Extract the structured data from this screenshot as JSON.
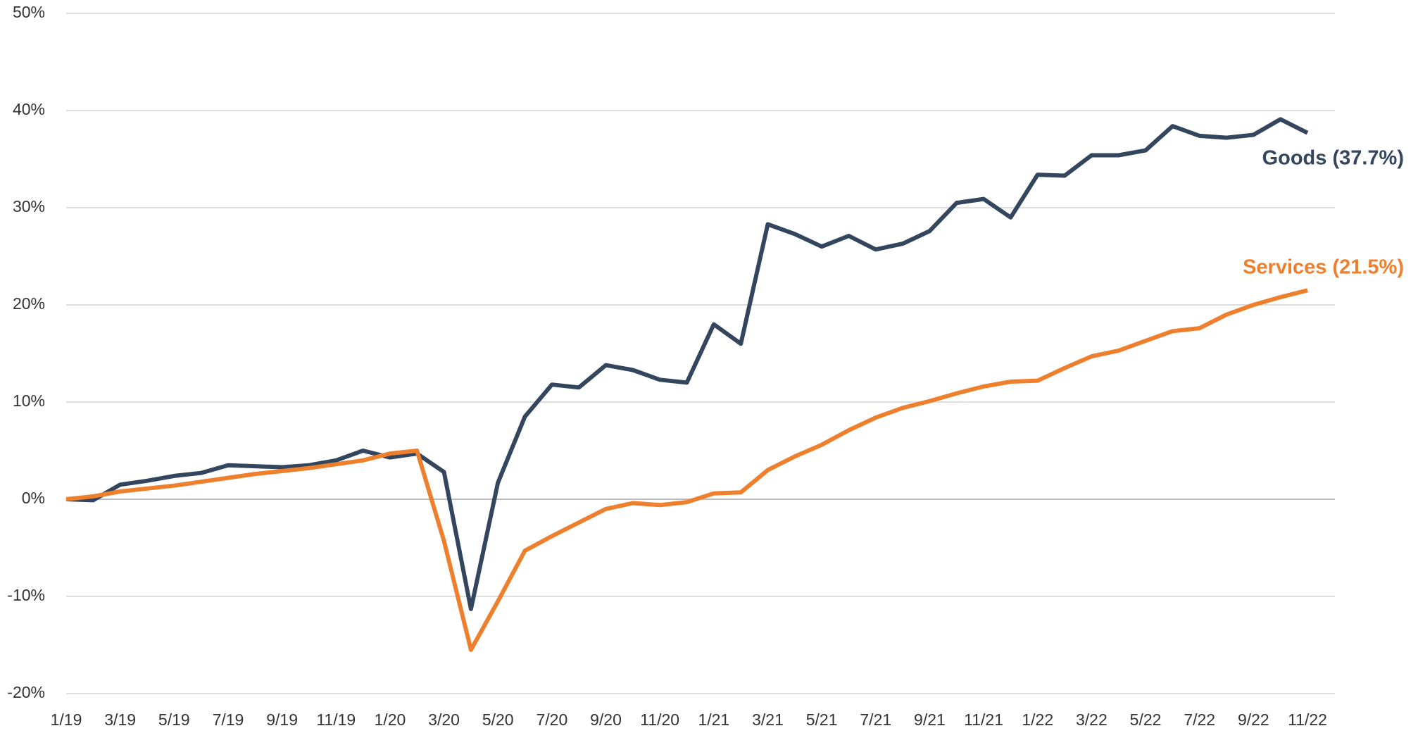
{
  "chart_data": {
    "type": "line",
    "categories": [
      "1/19",
      null,
      "3/19",
      null,
      "5/19",
      null,
      "7/19",
      null,
      "9/19",
      null,
      "11/19",
      null,
      "1/20",
      null,
      "3/20",
      null,
      "5/20",
      null,
      "7/20",
      null,
      "9/20",
      null,
      "11/20",
      null,
      "1/21",
      null,
      "3/21",
      null,
      "5/21",
      null,
      "7/21",
      null,
      "9/21",
      null,
      "11/21",
      null,
      "1/22",
      null,
      "3/22",
      null,
      "5/22",
      null,
      "7/22",
      null,
      "9/22",
      null,
      "11/22"
    ],
    "series": [
      {
        "name": "Goods (37.7%)",
        "color": "#34465e",
        "values": [
          0,
          -0.1,
          1.5,
          1.9,
          2.4,
          2.7,
          3.5,
          3.4,
          3.3,
          3.5,
          4.0,
          5.0,
          4.3,
          4.7,
          2.8,
          -11.3,
          1.7,
          8.5,
          11.8,
          11.5,
          13.8,
          13.3,
          12.3,
          12.0,
          18.0,
          16.0,
          28.3,
          27.3,
          26.0,
          27.1,
          25.7,
          26.3,
          27.6,
          30.5,
          30.9,
          29.0,
          33.4,
          33.3,
          35.4,
          35.4,
          35.9,
          38.4,
          37.4,
          37.2,
          37.5,
          39.1,
          37.7
        ]
      },
      {
        "name": "Services (21.5%)",
        "color": "#ee7f2d",
        "values": [
          0,
          0.3,
          0.8,
          1.1,
          1.4,
          1.8,
          2.2,
          2.6,
          2.9,
          3.2,
          3.6,
          4.0,
          4.7,
          5.0,
          -4.3,
          -15.5,
          -10.5,
          -5.3,
          -3.8,
          -2.4,
          -1.0,
          -0.4,
          -0.6,
          -0.3,
          0.6,
          0.7,
          3.0,
          4.4,
          5.6,
          7.1,
          8.4,
          9.4,
          10.1,
          10.9,
          11.6,
          12.1,
          12.2,
          13.5,
          14.7,
          15.3,
          16.3,
          17.3,
          17.6,
          19.0,
          20.0,
          20.8,
          21.5
        ]
      }
    ],
    "ylim": [
      -20,
      50
    ],
    "yticks": [
      {
        "value": -20,
        "label": "-20%"
      },
      {
        "value": -10,
        "label": "-10%"
      },
      {
        "value": 0,
        "label": "0%"
      },
      {
        "value": 10,
        "label": "10%"
      },
      {
        "value": 20,
        "label": "20%"
      },
      {
        "value": 30,
        "label": "30%"
      },
      {
        "value": 40,
        "label": "40%"
      },
      {
        "value": 50,
        "label": "50%"
      }
    ],
    "grid": true
  }
}
